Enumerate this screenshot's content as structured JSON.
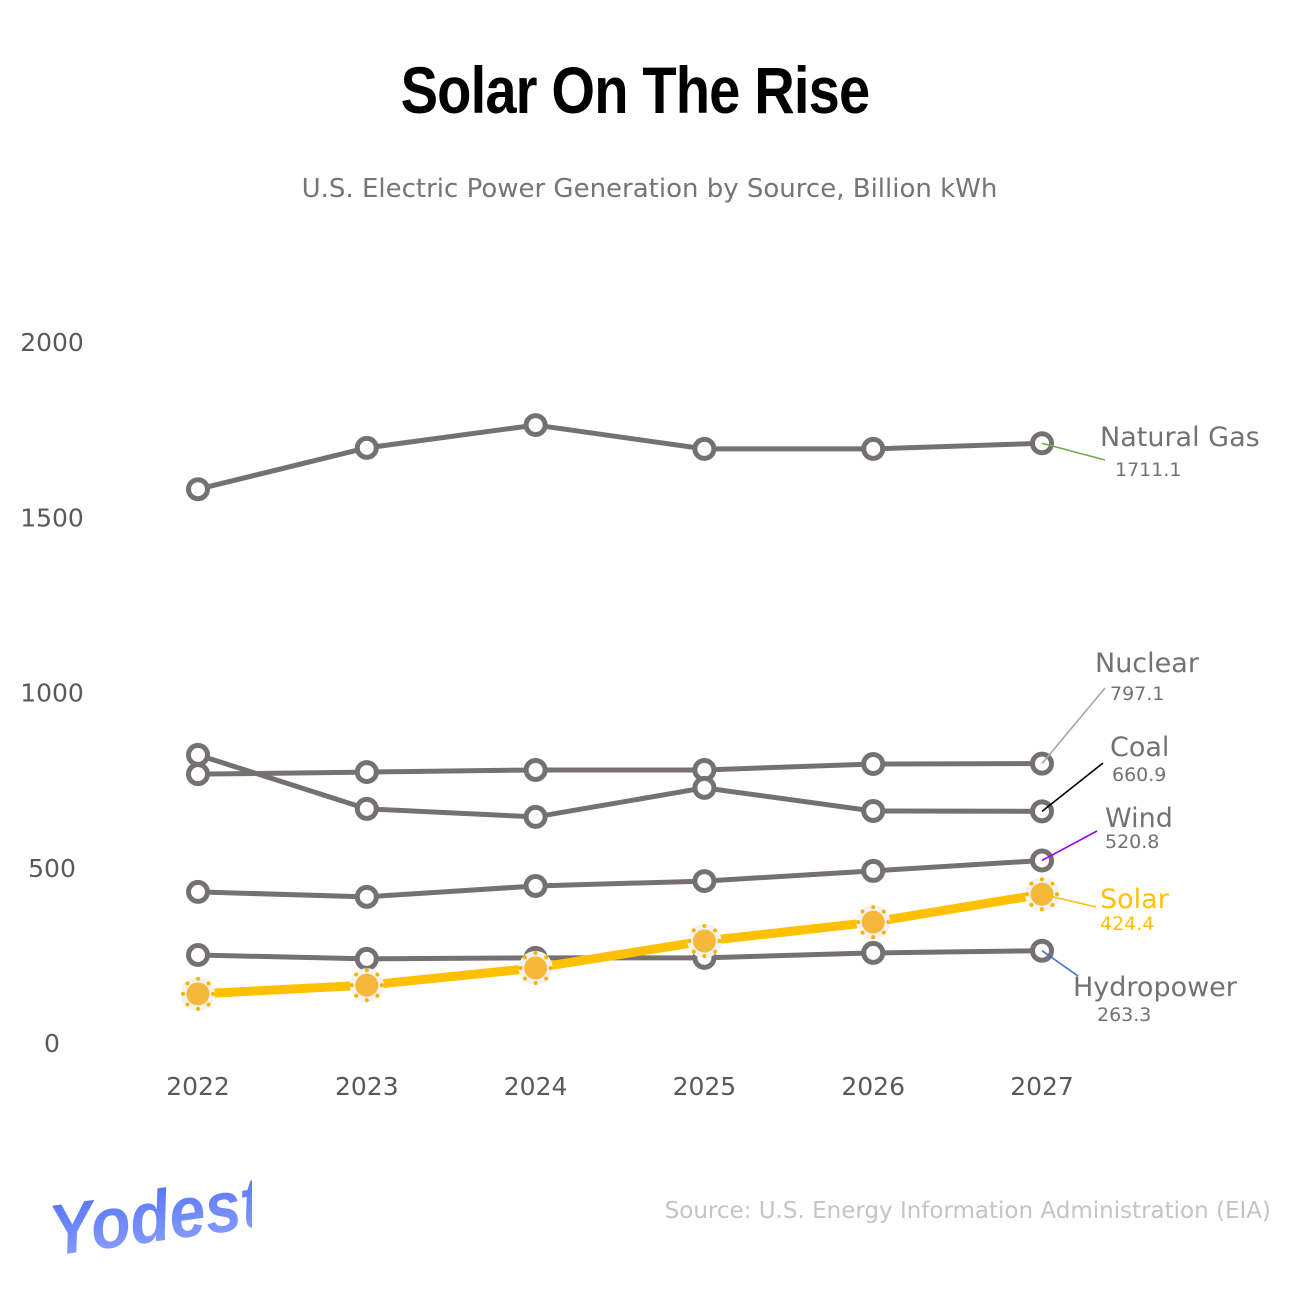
{
  "chart_data": {
    "type": "line",
    "title": "Solar On The Rise",
    "subtitle": "U.S. Electric Power Generation by Source, Billion kWh",
    "x": [
      "2022",
      "2023",
      "2024",
      "2025",
      "2026",
      "2027"
    ],
    "ylim": [
      0,
      2000
    ],
    "yticks": [
      "0",
      "500",
      "1000",
      "1500",
      "2000"
    ],
    "grid": false,
    "series": [
      {
        "name": "Natural Gas",
        "values": [
          1580,
          1698,
          1763,
          1695,
          1695,
          1711.1
        ],
        "end_label": "1711.1",
        "color": "#757171",
        "leader_color": "#70ad47"
      },
      {
        "name": "Nuclear",
        "values": [
          767,
          773,
          779,
          779,
          796,
          797.1
        ],
        "end_label": "797.1",
        "color": "#757171",
        "leader_color": "#a6a6a6"
      },
      {
        "name": "Coal",
        "values": [
          822,
          668,
          645,
          728,
          662,
          660.9
        ],
        "end_label": "660.9",
        "color": "#757171",
        "leader_color": "#000000"
      },
      {
        "name": "Wind",
        "values": [
          431,
          417,
          448,
          462,
          491,
          520.8
        ],
        "end_label": "520.8",
        "color": "#757171",
        "leader_color": "#9900ff"
      },
      {
        "name": "Hydropower",
        "values": [
          251,
          240,
          243,
          243,
          257,
          263.3
        ],
        "end_label": "263.3",
        "color": "#757171",
        "leader_color": "#4472c4"
      },
      {
        "name": "Solar",
        "values": [
          140,
          165,
          214,
          291,
          345,
          424.4
        ],
        "end_label": "424.4",
        "color": "#ffc000",
        "leader_color": "#ffc000",
        "marker": "sun-icon"
      }
    ]
  },
  "source": "Source: U.S. Energy Information Administration (EIA)",
  "logo": "Yodest",
  "colors": {
    "accent": "#ffc000",
    "line": "#757171",
    "logo": "#5b7cfa"
  }
}
